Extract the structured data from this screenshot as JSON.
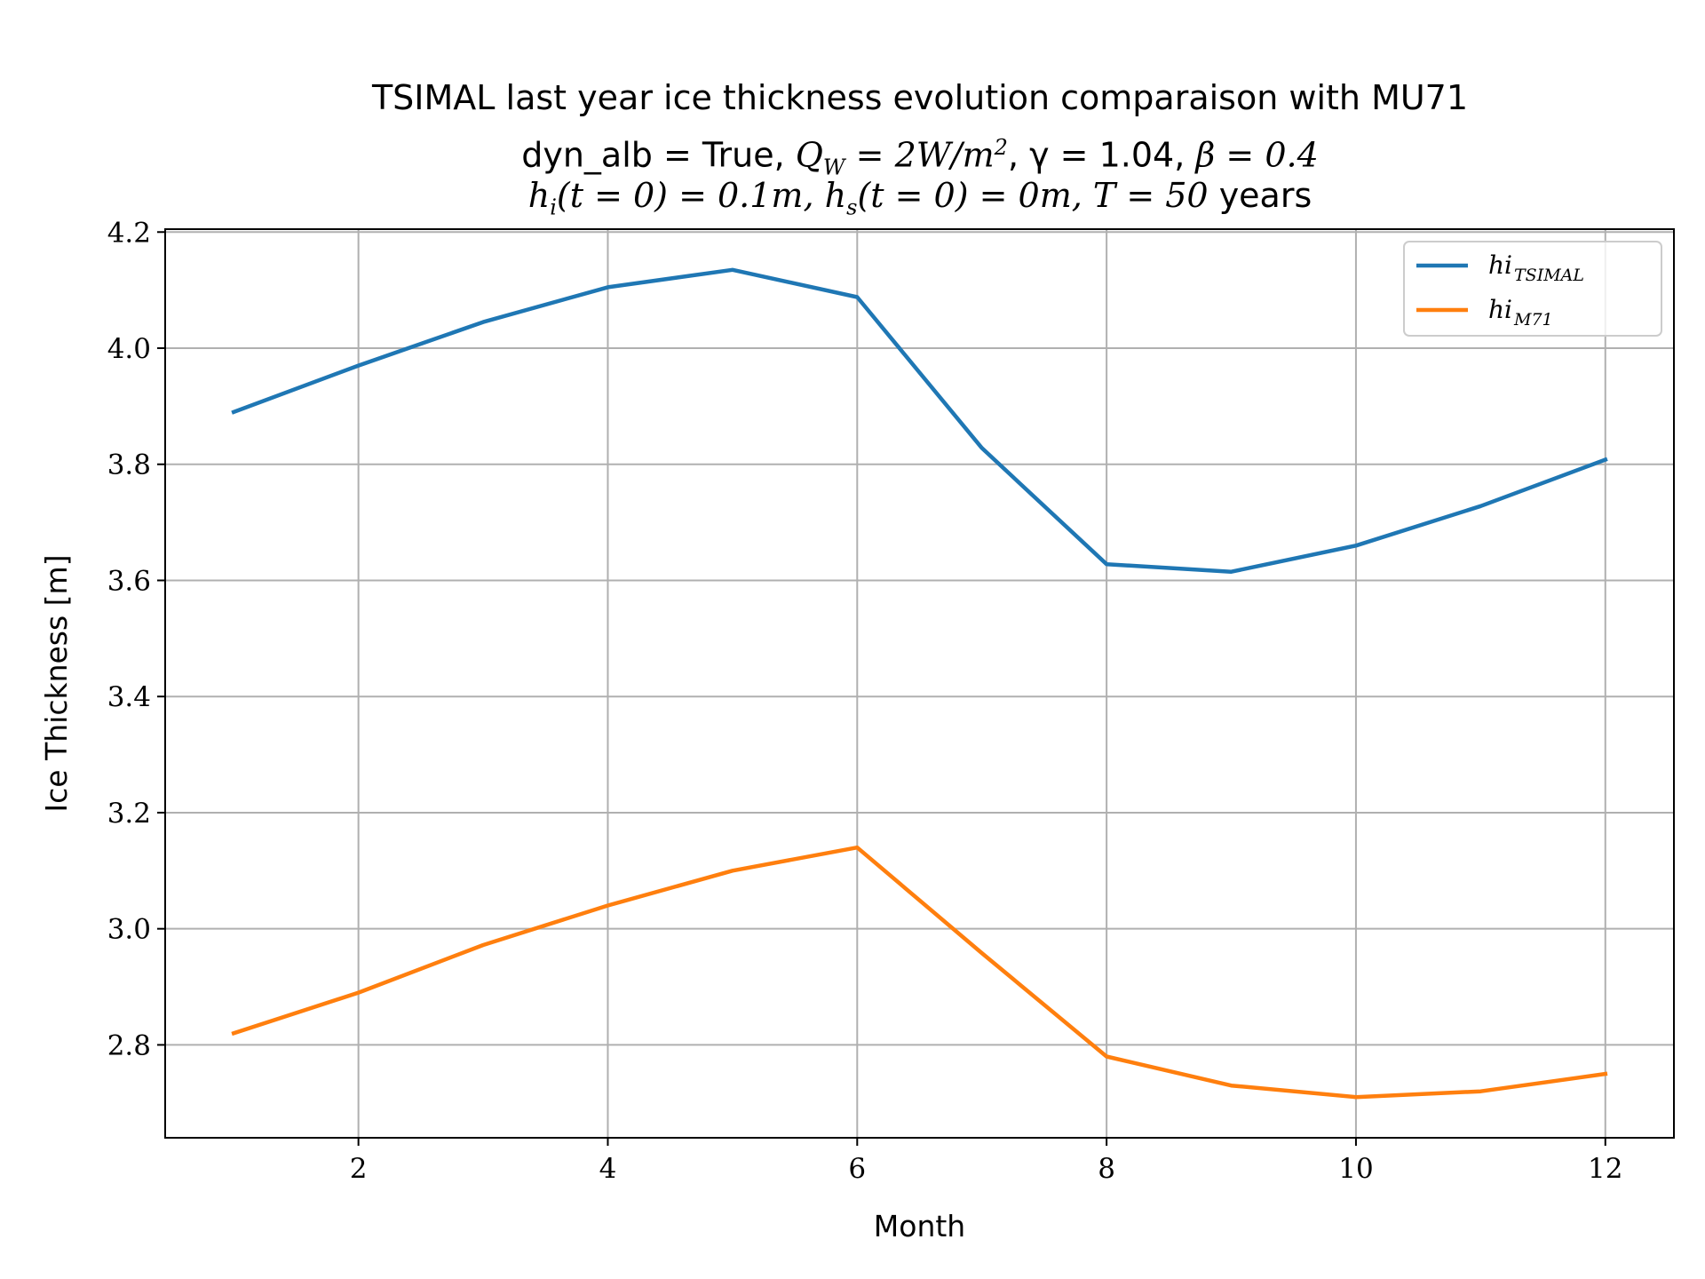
{
  "chart_data": {
    "type": "line",
    "title": {
      "line1": "TSIMAL last year ice thickness evolution comparaison with MU71",
      "line2_prefix": "dyn_alb = True, ",
      "line2_q": "Q",
      "line2_q_sub": "W",
      "line2_q_rest": " = 2W/m",
      "line2_q_sup": "2",
      "line2_gamma": ", γ = 1.04, ",
      "line2_beta": "β = 0.4",
      "line3_hi": "h",
      "line3_hi_sub": "i",
      "line3_hi_rest": "(t = 0) = 0.1m, ",
      "line3_hs": "h",
      "line3_hs_sub": "s",
      "line3_hs_rest": "(t = 0) = 0m, T = 50",
      "line3_tail": " years"
    },
    "xlabel": "Month",
    "ylabel": "Ice Thickness [m]",
    "xlim": [
      0.45,
      12.55
    ],
    "ylim": [
      2.64,
      4.205
    ],
    "xticks": [
      2,
      4,
      6,
      8,
      10,
      12
    ],
    "yticks": [
      2.8,
      3.0,
      3.2,
      3.4,
      3.6,
      3.8,
      4.0,
      4.2
    ],
    "ytick_labels": [
      "2.8",
      "3.0",
      "3.2",
      "3.4",
      "3.6",
      "3.8",
      "4.0",
      "4.2"
    ],
    "grid": true,
    "legend_position": "top-right",
    "x": [
      1,
      2,
      3,
      4,
      5,
      6,
      7,
      8,
      9,
      10,
      11,
      12
    ],
    "series": [
      {
        "name": "hi",
        "name_sub": "TSIMAL",
        "color": "#1f77b4",
        "values": [
          3.89,
          3.97,
          4.045,
          4.105,
          4.135,
          4.088,
          3.828,
          3.628,
          3.615,
          3.66,
          3.728,
          3.808
        ]
      },
      {
        "name": "hi",
        "name_sub": "M71",
        "color": "#ff7f0e",
        "values": [
          2.82,
          2.89,
          2.972,
          3.04,
          3.1,
          3.14,
          2.958,
          2.78,
          2.73,
          2.71,
          2.72,
          2.75
        ]
      }
    ]
  }
}
